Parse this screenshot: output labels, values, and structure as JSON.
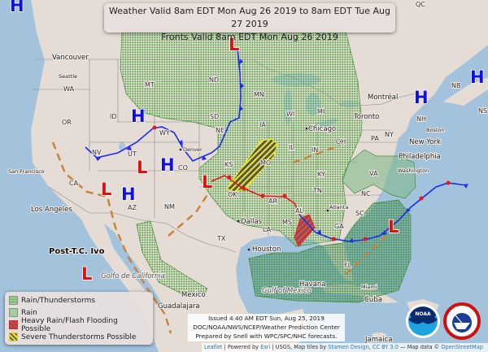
{
  "title": {
    "line1": "Weather Valid 8am EDT Mon Aug 26 2019 to 8am EDT Tue Aug 27 2019",
    "line2": "Fronts Valid 8am EDT Mon Aug 26 2019"
  },
  "legend": {
    "items": [
      {
        "label": "Rain/Thunderstorms",
        "color": "#4a9a3a"
      },
      {
        "label": "Rain",
        "color": "#a9c9a0"
      },
      {
        "label": "Heavy Rain/Flash Flooding Possible",
        "color": "#e02020"
      },
      {
        "label": "Severe Thunderstorms Possible",
        "color": "#e8e020"
      }
    ]
  },
  "issued": {
    "line1": "Issued 4:40 AM EDT Sun, Aug 25, 2019",
    "line2": "DOC/NOAA/NWS/NCEP/Weather Prediction Center",
    "line3": "Prepared by Snell with WPC/SPC/NHC forecasts."
  },
  "attribution": {
    "leaflet": "Leaflet",
    "powered": " | Powered by ",
    "esri": "Esri",
    "usgs": " | USGS, Map tiles by ",
    "stamen": "Stamen Design",
    "sep": ", ",
    "ccby": "CC BY 3.0",
    "mapdata": " — Map data © ",
    "osm": "OpenStreetMap"
  },
  "pressure_centers": {
    "high": "H",
    "low": "L",
    "post_tc": "Post-T.C. Ivo"
  },
  "states": [
    "WA",
    "OR",
    "CA",
    "NV",
    "ID",
    "MT",
    "WY",
    "UT",
    "AZ",
    "CO",
    "NM",
    "ND",
    "SD",
    "NE",
    "KS",
    "OK",
    "TX",
    "MN",
    "IA",
    "MO",
    "AR",
    "LA",
    "WI",
    "IL",
    "MS",
    "MI",
    "IN",
    "KY",
    "TN",
    "AL",
    "GA",
    "OH",
    "FL",
    "PA",
    "NY",
    "VA",
    "NC",
    "SC",
    "NH",
    "NB",
    "QC",
    "NS"
  ],
  "cities": [
    "Vancouver",
    "Seattle",
    "San Francisco",
    "Los Angeles",
    "Denver",
    "Dallas",
    "Houston",
    "Chicago",
    "Atlanta",
    "Toronto",
    "Montréal",
    "New York",
    "Philadelphia",
    "Washington",
    "Boston",
    "Miami",
    "Havana",
    "Mexico",
    "Guadalajara",
    "Cuba",
    "Jamaica"
  ],
  "water": {
    "gulf_mexico": "Gulf of Mexico",
    "gulf_california": "Golfo de California"
  },
  "logos": {
    "noaa": "NOAA",
    "nws": "NATIONAL WEATHER SERVICE"
  },
  "colors": {
    "cold_front": "#1a2cf0",
    "warm_front": "#e81818",
    "trough": "#c8843a",
    "rain_thunder": "#3f8f30",
    "land": "#e6dcd6",
    "ocean": "#a3c2dc"
  }
}
